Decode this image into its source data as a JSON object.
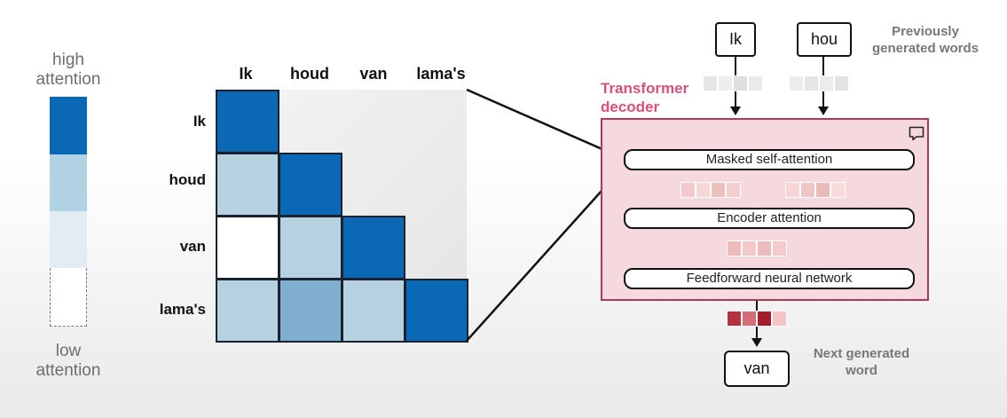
{
  "legend": {
    "high_label": "high\nattention",
    "low_label": "low\nattention",
    "colors": [
      "#0a68b5",
      "#b1d1e4",
      "#e3ebf3",
      "#ffffff"
    ]
  },
  "matrix": {
    "col_labels": [
      "Ik",
      "houd",
      "van",
      "lama's"
    ],
    "row_labels": [
      "Ik",
      "houd",
      "van",
      "lama's"
    ],
    "cells": [
      {
        "row": 0,
        "col": 0,
        "color": "#0a68b5"
      },
      {
        "row": 1,
        "col": 0,
        "color": "#b6d1e0"
      },
      {
        "row": 1,
        "col": 1,
        "color": "#0a68b5"
      },
      {
        "row": 2,
        "col": 0,
        "color": "#ffffff"
      },
      {
        "row": 2,
        "col": 1,
        "color": "#b6d1e0"
      },
      {
        "row": 2,
        "col": 2,
        "color": "#0a68b5"
      },
      {
        "row": 3,
        "col": 0,
        "color": "#b6d1e0"
      },
      {
        "row": 3,
        "col": 1,
        "color": "#80aecf"
      },
      {
        "row": 3,
        "col": 2,
        "color": "#b6d1e0"
      },
      {
        "row": 3,
        "col": 3,
        "color": "#0a68b5"
      }
    ]
  },
  "decoder": {
    "title": "Transformer\ndecoder",
    "title_color": "#d9507a",
    "layers": [
      "Masked self-attention",
      "Encoder attention",
      "Feedforward neural network"
    ]
  },
  "inputs": {
    "tokens": [
      "Ik",
      "hou"
    ],
    "caption": "Previously\ngenerated words"
  },
  "output": {
    "token": "van",
    "caption": "Next generated\nword"
  }
}
